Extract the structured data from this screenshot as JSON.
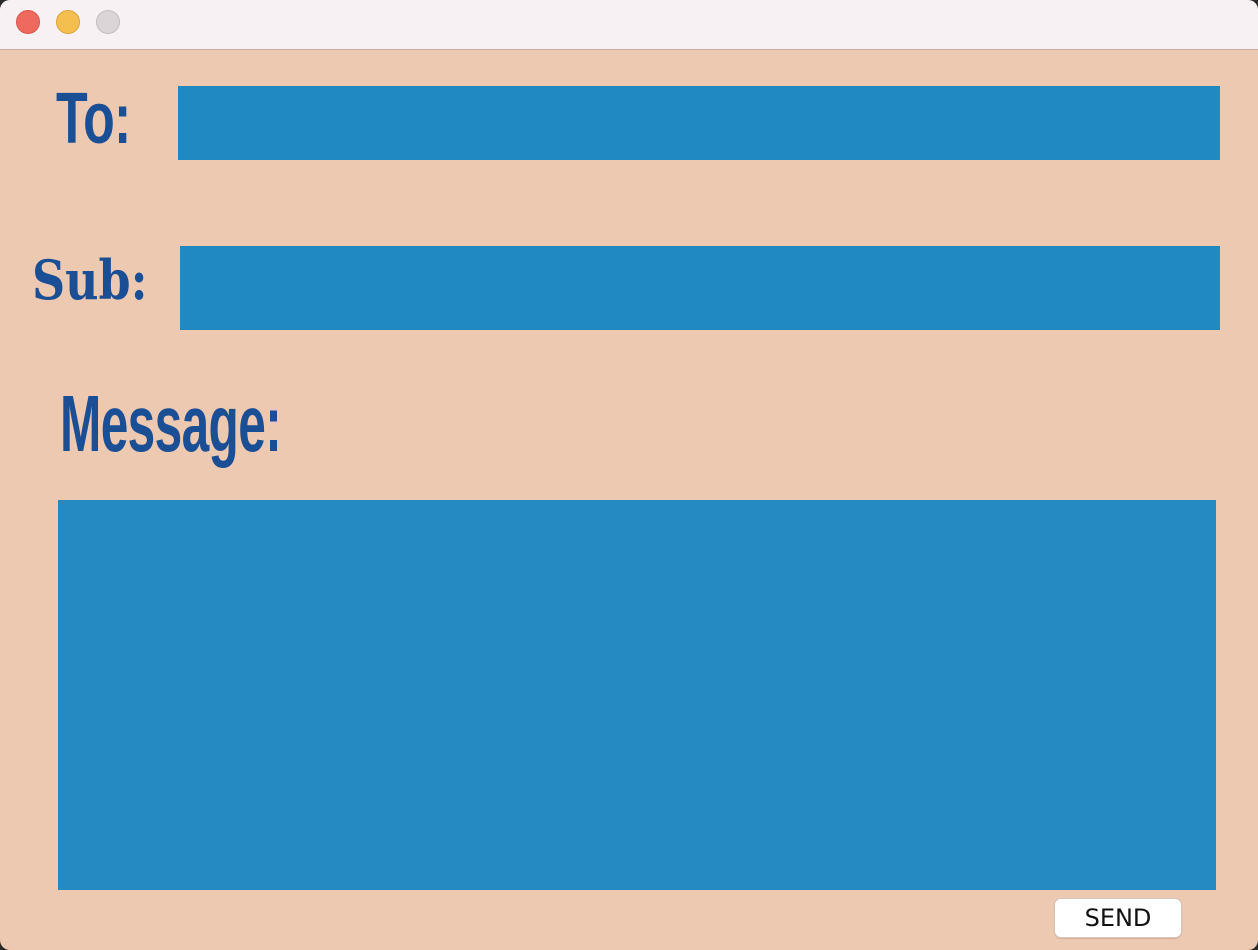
{
  "window": {
    "title": "",
    "traffic_lights": [
      "close",
      "minimize",
      "zoom"
    ]
  },
  "form": {
    "to_label": "To:",
    "to_value": "",
    "sub_label": "Sub:",
    "sub_value": "",
    "message_label": "Message:",
    "message_value": ""
  },
  "actions": {
    "send_label": "SEND"
  },
  "colors": {
    "background": "#eec9b1",
    "field": "#2189c1",
    "label": "#1a4e95",
    "titlebar": "#f8f1f3"
  }
}
